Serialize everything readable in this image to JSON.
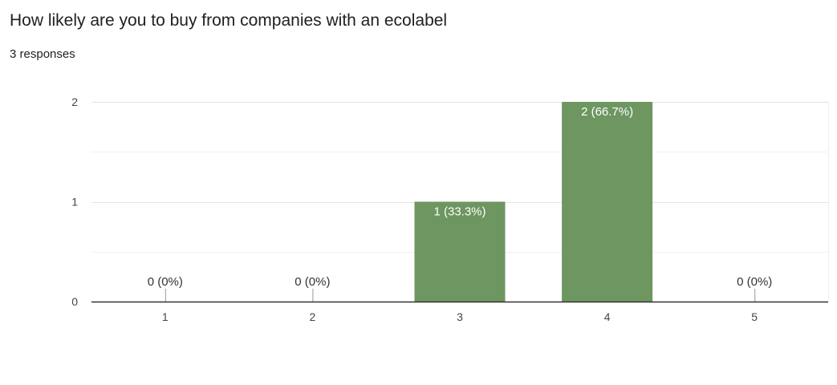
{
  "header": {
    "question": "How likely are you to buy from companies with an ecolabel",
    "responses": "3 responses"
  },
  "chart_data": {
    "type": "bar",
    "categories": [
      "1",
      "2",
      "3",
      "4",
      "5"
    ],
    "values": [
      0,
      0,
      1,
      2,
      0
    ],
    "data_labels": [
      "0 (0%)",
      "0 (0%)",
      "1 (33.3%)",
      "2 (66.7%)",
      "0 (0%)"
    ],
    "title": "How likely are you to buy from companies with an ecolabel",
    "xlabel": "",
    "ylabel": "",
    "ylim": [
      0,
      2
    ],
    "yticks": [
      "0",
      "1",
      "2"
    ],
    "grid": true,
    "bar_color": "#6d9660"
  }
}
